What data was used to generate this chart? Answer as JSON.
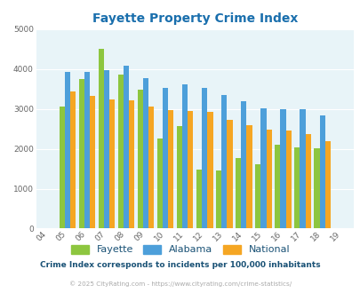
{
  "title": "Fayette Property Crime Index",
  "title_color": "#1a6fad",
  "years": [
    "04",
    "05",
    "06",
    "07",
    "08",
    "09",
    "10",
    "11",
    "12",
    "13",
    "14",
    "15",
    "16",
    "17",
    "18",
    "19"
  ],
  "fayette": [
    0,
    3060,
    3750,
    4500,
    3870,
    3490,
    2260,
    2580,
    1470,
    1460,
    1780,
    1620,
    2100,
    2030,
    2010,
    0
  ],
  "alabama": [
    0,
    3920,
    3930,
    3980,
    4090,
    3780,
    3530,
    3610,
    3520,
    3360,
    3200,
    3010,
    3000,
    3000,
    2840,
    0
  ],
  "national": [
    0,
    3450,
    3340,
    3250,
    3210,
    3060,
    2970,
    2960,
    2920,
    2730,
    2600,
    2490,
    2460,
    2370,
    2200,
    0
  ],
  "fayette_color": "#8dc63f",
  "alabama_color": "#4d9fda",
  "national_color": "#f5a623",
  "background_color": "#e8f4f8",
  "ylim": [
    0,
    5000
  ],
  "yticks": [
    0,
    1000,
    2000,
    3000,
    4000,
    5000
  ],
  "subtitle": "Crime Index corresponds to incidents per 100,000 inhabitants",
  "subtitle_color": "#1a5276",
  "copyright": "© 2025 CityRating.com - https://www.cityrating.com/crime-statistics/",
  "copyright_color": "#aaaaaa",
  "legend_labels": [
    "Fayette",
    "Alabama",
    "National"
  ],
  "bar_width": 0.28
}
